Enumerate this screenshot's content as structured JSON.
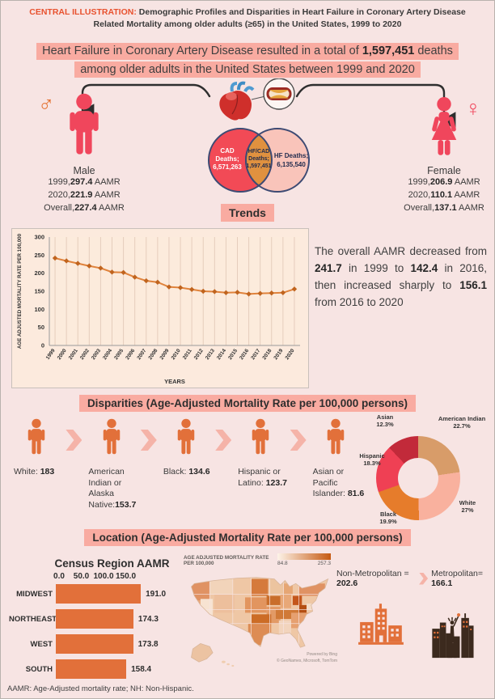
{
  "colors": {
    "accent_orange": "#e2703a",
    "highlight": "#f9aba1",
    "rose": "#f0465c",
    "venn_red": "#f24a56",
    "venn_orange": "#e0913f",
    "venn_pink": "#f9c4ba",
    "line": "#e0833c"
  },
  "header": {
    "label": "CENTRAL ILLUSTRATION:",
    "title_line1": "Demographic Profiles and Disparities in Heart Failure in Coronary Artery Disease",
    "title_line2": "Related Mortality among older adults (≥65) in the United States, 1999 to 2020"
  },
  "banner": {
    "line1_pre": "Heart Failure in Coronary Artery Disease resulted in a total of ",
    "line1_bold": "1,597,451",
    "line1_post": " deaths",
    "line2": "among older adults in the United States between 1999 and 2020"
  },
  "male": {
    "symbol": "♂",
    "label": "Male",
    "stats": [
      {
        "pre": "1999,",
        "value": "297.4",
        "post": " AAMR"
      },
      {
        "pre": "2020,",
        "value": "221.9",
        "post": " AAMR"
      },
      {
        "pre": "Overall,",
        "value": "227.4",
        "post": " AAMR"
      }
    ]
  },
  "female": {
    "symbol": "♀",
    "label": "Female",
    "stats": [
      {
        "pre": "1999,",
        "value": "206.9",
        "post": " AAMR"
      },
      {
        "pre": "2020,",
        "value": "110.1",
        "post": " AAMR"
      },
      {
        "pre": "Overall,",
        "value": "137.1",
        "post": " AAMR"
      }
    ]
  },
  "venn": {
    "cad": {
      "l1": "CAD",
      "l2": "Deaths;",
      "l3": "6,571,263"
    },
    "overlap": {
      "l1": "HF/CAD",
      "l2": "Deaths;",
      "l3": "1,597,451"
    },
    "hf": {
      "l1": "HF Deaths;",
      "l2": "6,135,540"
    }
  },
  "trends": {
    "heading": "Trends",
    "summary": {
      "p0": "The overall AAMR decreased from ",
      "b0": "241.7",
      "p1": " in 1999 to ",
      "b1": "142.4",
      "p2": " in 2016, then increased sharply to ",
      "b2": "156.1",
      "p3": " from 2016 to 2020"
    }
  },
  "disparities": {
    "heading": "Disparities (Age-Adjusted Mortality Rate per 100,000 persons)",
    "groups": [
      {
        "pre": "White: ",
        "value": "183"
      },
      {
        "pre": "American Indian or Alaska Native:",
        "value": "153.7"
      },
      {
        "pre": "Black: ",
        "value": "134.6"
      },
      {
        "pre": "Hispanic or Latino: ",
        "value": "123.7"
      },
      {
        "pre": "Asian or Pacific Islander: ",
        "value": "81.6"
      }
    ]
  },
  "location": {
    "heading": "Location (Age-Adjusted Mortality Rate per 100,000 persons)",
    "nonmetro_pre": "Non-Metropolitan = ",
    "nonmetro_value": "202.6",
    "metro_pre": "Metropolitan= ",
    "metro_value": "166.1",
    "attribution_line1": "Powered by Bing",
    "attribution_line2": "© GeoNames, Microsoft, TomTom"
  },
  "footer": "AAMR: Age-Adjusted mortality rate; NH: Non-Hispanic.",
  "chart_data": [
    {
      "id": "trends-line",
      "type": "line",
      "title": "",
      "xlabel": "YEARS",
      "ylabel": "AGE ADJUSTED MORTALITY RATE PER 100,000",
      "x": [
        "1999",
        "2000",
        "2001",
        "2002",
        "2003",
        "2004",
        "2005",
        "2006",
        "2007",
        "2008",
        "2009",
        "2010",
        "2011",
        "2012",
        "2013",
        "2014",
        "2015",
        "2016",
        "2017",
        "2018",
        "2019",
        "2020"
      ],
      "values": [
        241.7,
        234,
        227,
        220,
        214,
        203,
        202,
        189,
        179,
        175,
        162,
        160,
        155,
        150,
        149,
        146,
        147,
        142.4,
        144,
        145,
        146,
        156.1
      ],
      "ylim": [
        0,
        300
      ],
      "ytick_step": 50,
      "grid": "vertical",
      "legend": "none",
      "line_color": "#e0833c",
      "marker_color": "#c0641e"
    },
    {
      "id": "race-donut",
      "type": "pie",
      "labels": [
        "American Indian",
        "White",
        "Black",
        "Hispanic",
        "Asian"
      ],
      "values": [
        22.7,
        27,
        19.9,
        18.3,
        12.3
      ],
      "pcts": [
        "22.7%",
        "27%",
        "19.9%",
        "18.3%",
        "12.3%"
      ],
      "colors": [
        "#d89c69",
        "#f9b19e",
        "#e67c2b",
        "#ef4054",
        "#c22a3a"
      ],
      "hole": 0.52,
      "legend": "outside-labels"
    },
    {
      "id": "census-region",
      "type": "bar",
      "title": "Census Region AAMR",
      "categories": [
        "MIDWEST",
        "NORTHEAST",
        "WEST",
        "SOUTH"
      ],
      "values": [
        191.0,
        174.3,
        173.8,
        158.4
      ],
      "xticks": [
        0.0,
        50.0,
        100.0,
        150.0
      ],
      "bar_color": "#e2703a",
      "orientation": "horizontal"
    },
    {
      "id": "us-choropleth",
      "type": "heatmap",
      "legend_title": "AGE ADJUSTED MORTALITY RATE PER 100,000",
      "min": 84.8,
      "max": 257.3,
      "legend_min_label": "84.8",
      "legend_max_label": "257.3",
      "color_min": "#fdf3e8",
      "color_max": "#c65911"
    }
  ]
}
